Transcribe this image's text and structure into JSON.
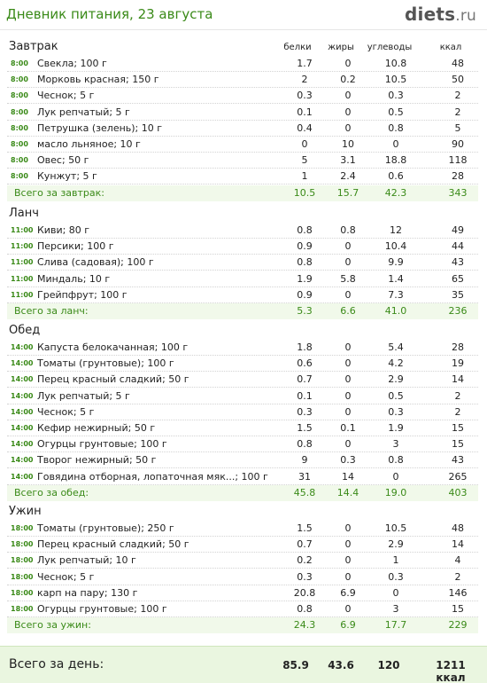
{
  "header": {
    "title": "Дневник питания, 23 августа",
    "logo_main": "diets",
    "logo_tld": ".ru"
  },
  "columns": {
    "protein": "белки",
    "fat": "жиры",
    "carbs": "углеводы",
    "kcal": "ккал"
  },
  "meals": [
    {
      "name": "Завтрак",
      "items": [
        {
          "time": "8:00",
          "name": "Свекла; 100 г",
          "p": "1.7",
          "f": "0",
          "c": "10.8",
          "k": "48"
        },
        {
          "time": "8:00",
          "name": "Морковь красная; 150 г",
          "p": "2",
          "f": "0.2",
          "c": "10.5",
          "k": "50"
        },
        {
          "time": "8:00",
          "name": "Чеснок; 5 г",
          "p": "0.3",
          "f": "0",
          "c": "0.3",
          "k": "2"
        },
        {
          "time": "8:00",
          "name": "Лук репчатый; 5 г",
          "p": "0.1",
          "f": "0",
          "c": "0.5",
          "k": "2"
        },
        {
          "time": "8:00",
          "name": "Петрушка (зелень); 10 г",
          "p": "0.4",
          "f": "0",
          "c": "0.8",
          "k": "5"
        },
        {
          "time": "8:00",
          "name": "масло льняное; 10 г",
          "p": "0",
          "f": "10",
          "c": "0",
          "k": "90"
        },
        {
          "time": "8:00",
          "name": "Овес; 50 г",
          "p": "5",
          "f": "3.1",
          "c": "18.8",
          "k": "118"
        },
        {
          "time": "8:00",
          "name": "Кунжут; 5 г",
          "p": "1",
          "f": "2.4",
          "c": "0.6",
          "k": "28"
        }
      ],
      "total": {
        "label": "Всего за завтрак:",
        "p": "10.5",
        "f": "15.7",
        "c": "42.3",
        "k": "343"
      }
    },
    {
      "name": "Ланч",
      "items": [
        {
          "time": "11:00",
          "name": "Киви; 80 г",
          "p": "0.8",
          "f": "0.8",
          "c": "12",
          "k": "49"
        },
        {
          "time": "11:00",
          "name": "Персики; 100 г",
          "p": "0.9",
          "f": "0",
          "c": "10.4",
          "k": "44"
        },
        {
          "time": "11:00",
          "name": "Слива (садовая); 100 г",
          "p": "0.8",
          "f": "0",
          "c": "9.9",
          "k": "43"
        },
        {
          "time": "11:00",
          "name": "Миндаль; 10 г",
          "p": "1.9",
          "f": "5.8",
          "c": "1.4",
          "k": "65"
        },
        {
          "time": "11:00",
          "name": "Грейпфрут; 100 г",
          "p": "0.9",
          "f": "0",
          "c": "7.3",
          "k": "35"
        }
      ],
      "total": {
        "label": "Всего за ланч:",
        "p": "5.3",
        "f": "6.6",
        "c": "41.0",
        "k": "236"
      }
    },
    {
      "name": "Обед",
      "items": [
        {
          "time": "14:00",
          "name": "Капуста белокачанная; 100 г",
          "p": "1.8",
          "f": "0",
          "c": "5.4",
          "k": "28"
        },
        {
          "time": "14:00",
          "name": "Томаты (грунтовые); 100 г",
          "p": "0.6",
          "f": "0",
          "c": "4.2",
          "k": "19"
        },
        {
          "time": "14:00",
          "name": "Перец красный сладкий; 50 г",
          "p": "0.7",
          "f": "0",
          "c": "2.9",
          "k": "14"
        },
        {
          "time": "14:00",
          "name": "Лук репчатый; 5 г",
          "p": "0.1",
          "f": "0",
          "c": "0.5",
          "k": "2"
        },
        {
          "time": "14:00",
          "name": "Чеснок; 5 г",
          "p": "0.3",
          "f": "0",
          "c": "0.3",
          "k": "2"
        },
        {
          "time": "14:00",
          "name": "Кефир нежирный; 50 г",
          "p": "1.5",
          "f": "0.1",
          "c": "1.9",
          "k": "15"
        },
        {
          "time": "14:00",
          "name": "Огурцы грунтовые; 100 г",
          "p": "0.8",
          "f": "0",
          "c": "3",
          "k": "15"
        },
        {
          "time": "14:00",
          "name": "Творог нежирный; 50 г",
          "p": "9",
          "f": "0.3",
          "c": "0.8",
          "k": "43"
        },
        {
          "time": "14:00",
          "name": "Говядина отборная, лопаточная мяк...; 100 г",
          "p": "31",
          "f": "14",
          "c": "0",
          "k": "265"
        }
      ],
      "total": {
        "label": "Всего за обед:",
        "p": "45.8",
        "f": "14.4",
        "c": "19.0",
        "k": "403"
      }
    },
    {
      "name": "Ужин",
      "items": [
        {
          "time": "18:00",
          "name": "Томаты (грунтовые); 250 г",
          "p": "1.5",
          "f": "0",
          "c": "10.5",
          "k": "48"
        },
        {
          "time": "18:00",
          "name": "Перец красный сладкий; 50 г",
          "p": "0.7",
          "f": "0",
          "c": "2.9",
          "k": "14"
        },
        {
          "time": "18:00",
          "name": "Лук репчатый; 10 г",
          "p": "0.2",
          "f": "0",
          "c": "1",
          "k": "4"
        },
        {
          "time": "18:00",
          "name": "Чеснок; 5 г",
          "p": "0.3",
          "f": "0",
          "c": "0.3",
          "k": "2"
        },
        {
          "time": "18:00",
          "name": "карп на пару; 130 г",
          "p": "20.8",
          "f": "6.9",
          "c": "0",
          "k": "146"
        },
        {
          "time": "18:00",
          "name": "Огурцы грунтовые; 100 г",
          "p": "0.8",
          "f": "0",
          "c": "3",
          "k": "15"
        }
      ],
      "total": {
        "label": "Всего за ужин:",
        "p": "24.3",
        "f": "6.9",
        "c": "17.7",
        "k": "229"
      }
    }
  ],
  "day_total": {
    "label": "Всего за день:",
    "p": "85.9",
    "f": "43.6",
    "c": "120",
    "k": "1211 ккал"
  }
}
